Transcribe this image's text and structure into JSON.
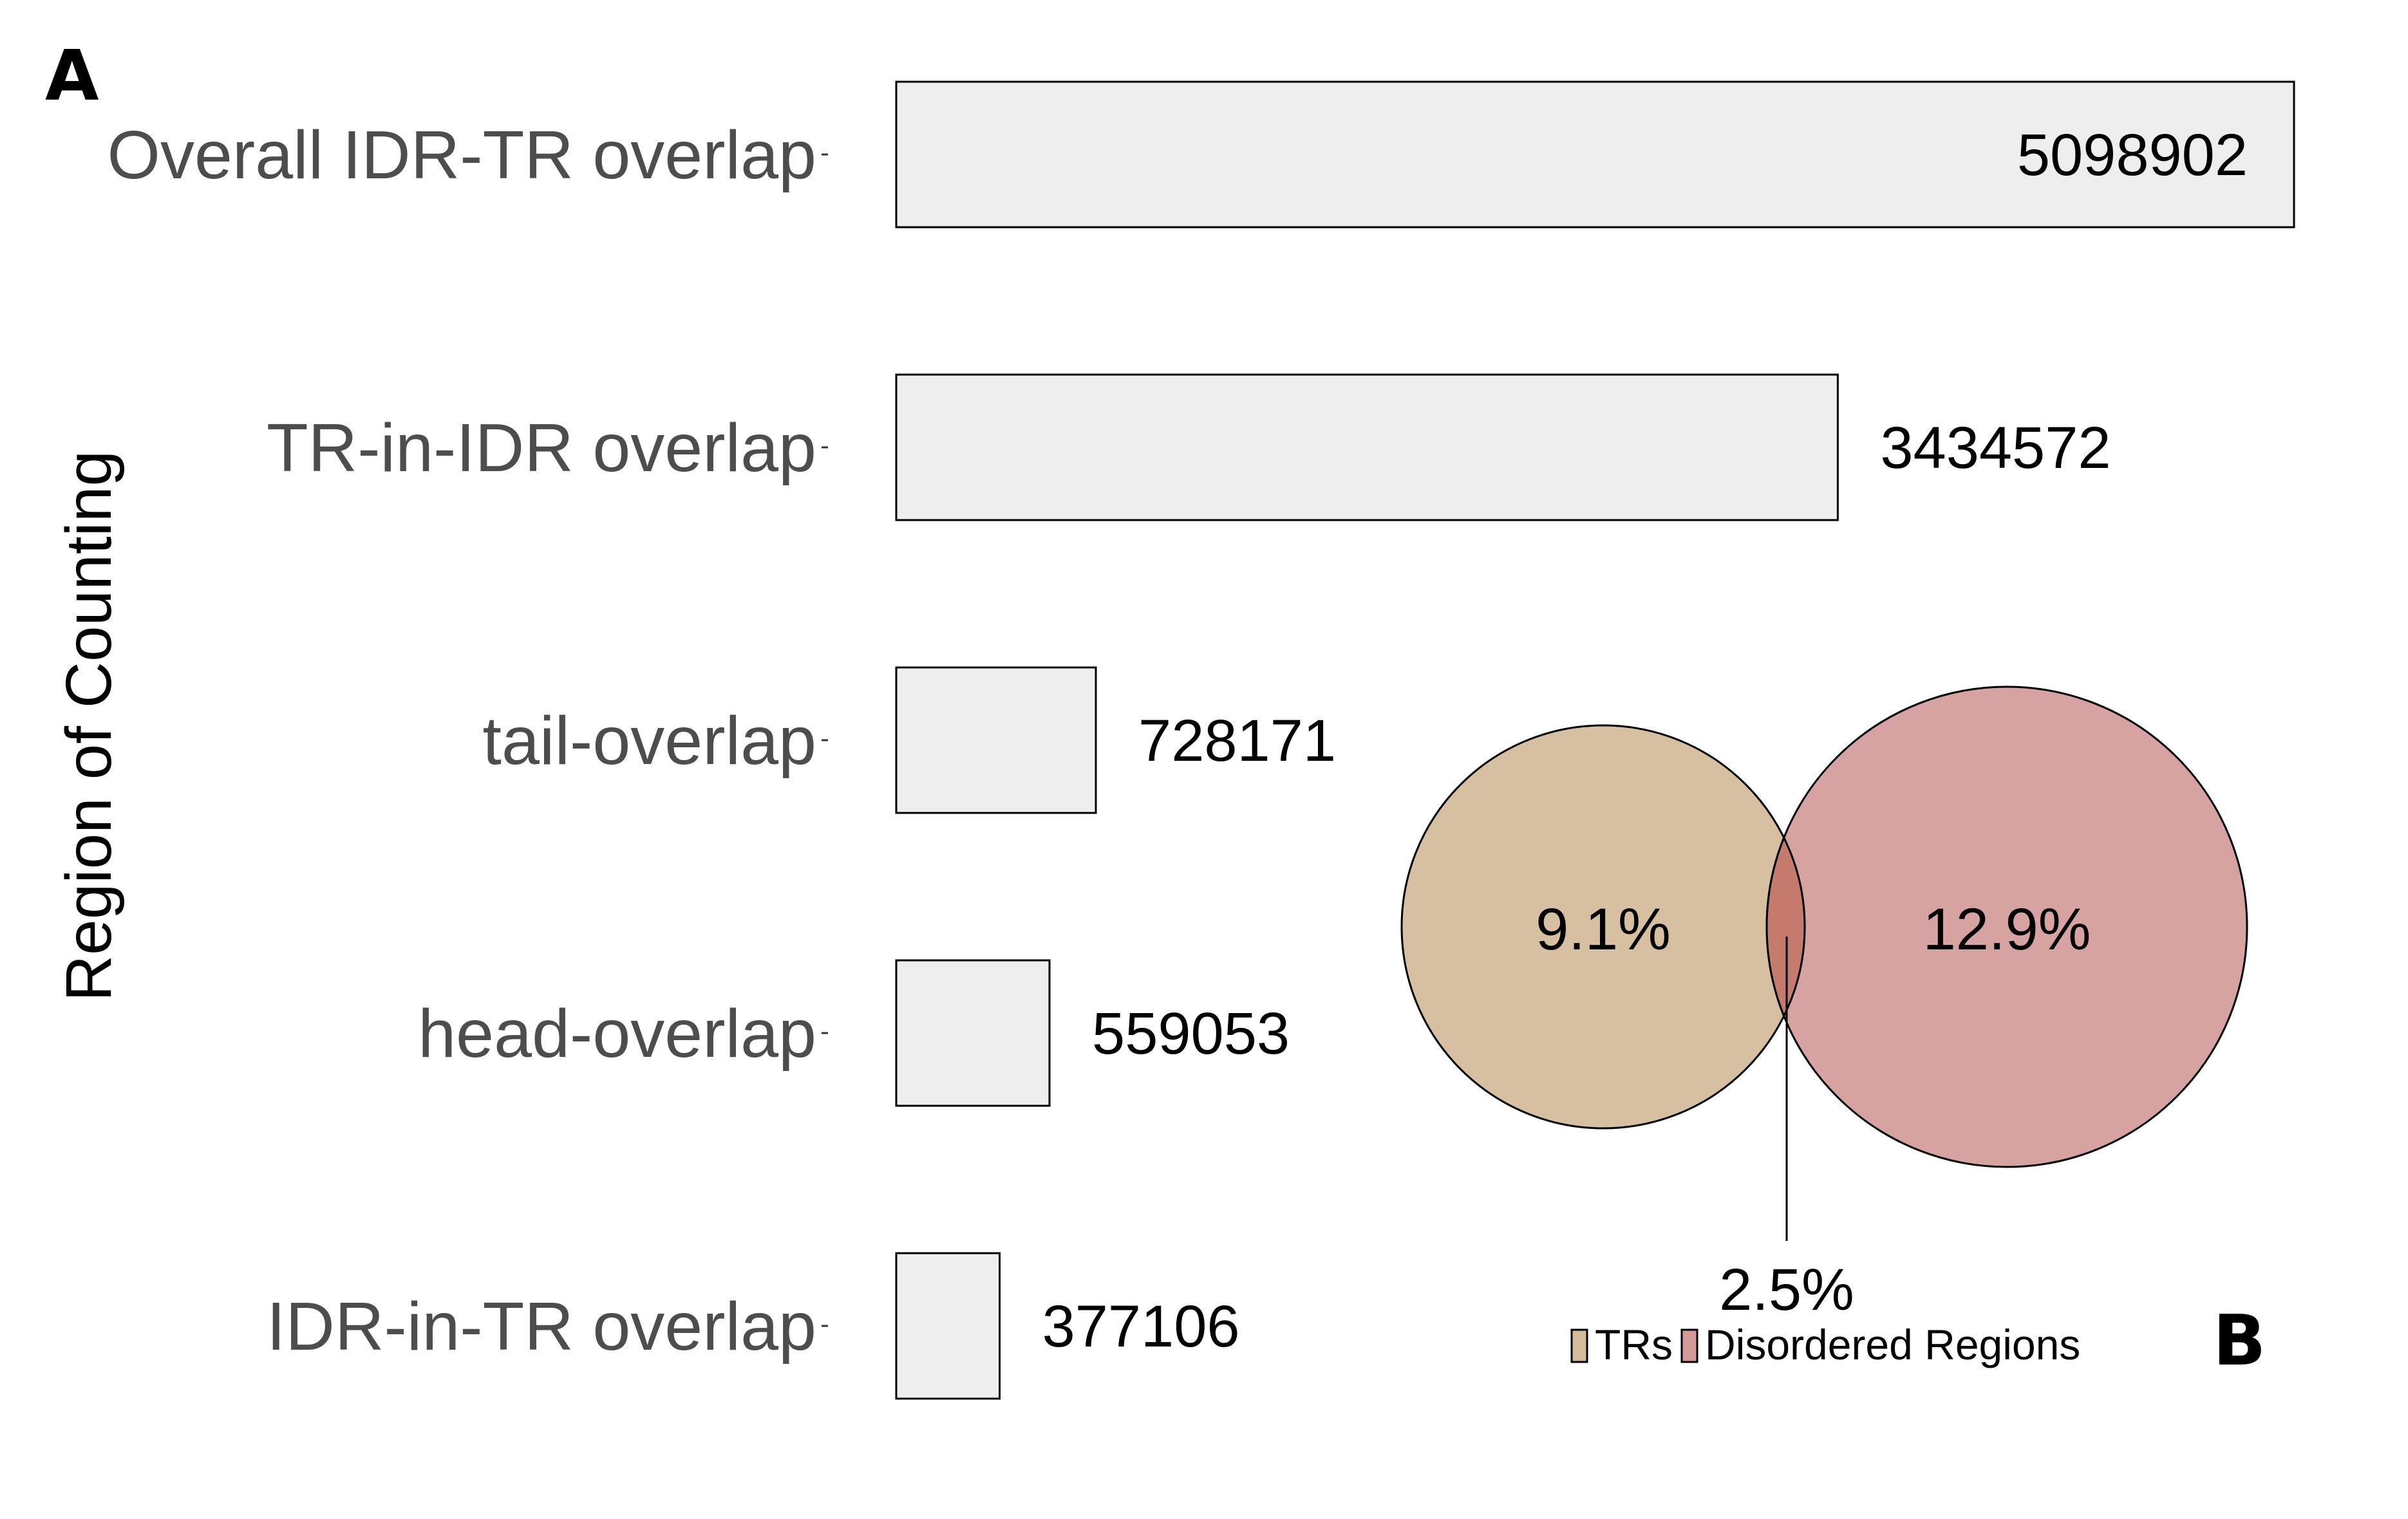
{
  "panels": {
    "a": "A",
    "b": "B"
  },
  "chart_data": [
    {
      "type": "bar",
      "orientation": "horizontal",
      "ylabel": "Region of Counting",
      "xlabel": "",
      "categories": [
        "Overall IDR-TR overlap",
        "TR-in-IDR overlap",
        "tail-overlap",
        "head-overlap",
        "IDR-in-TR overlap"
      ],
      "values": [
        5098902,
        3434572,
        728171,
        559053,
        377106
      ],
      "value_labels": [
        "5098902",
        "3434572",
        "728171",
        "559053",
        "377106"
      ],
      "xlim": [
        0,
        5098902
      ],
      "grid": false,
      "bar_fill": "#eeeeee",
      "bar_stroke": "#000000"
    },
    {
      "type": "venn",
      "sets": [
        {
          "name": "TRs",
          "percent_label": "9.1%",
          "color": "#d4bb9a"
        },
        {
          "name": "Disordered Regions",
          "percent_label": "12.9%",
          "color": "#d49a9a"
        }
      ],
      "intersection_label": "2.5%",
      "intersection_color": "#c47b6e",
      "legend_position": "bottom"
    }
  ]
}
